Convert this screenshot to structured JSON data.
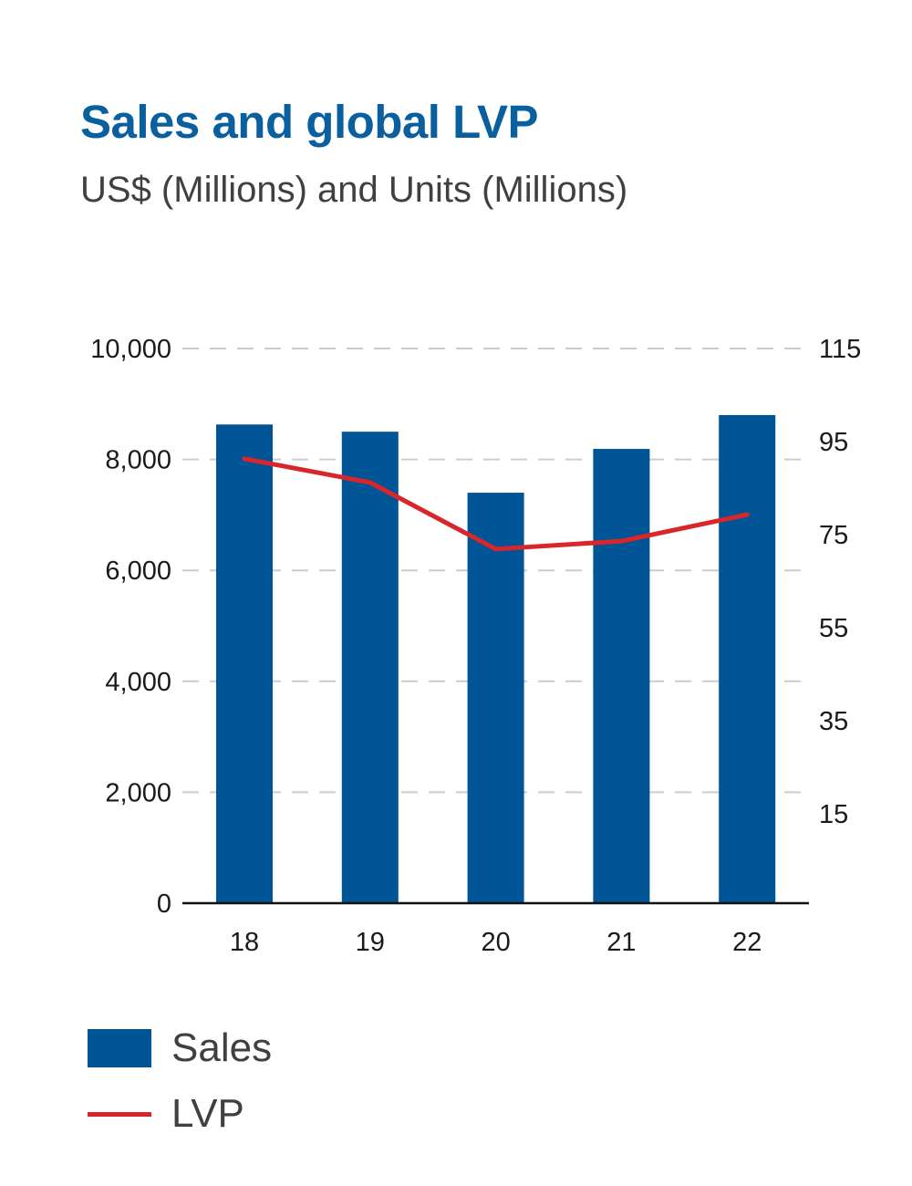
{
  "chart_data": {
    "type": "bar+line",
    "title": "Sales and global LVP",
    "subtitle": "US$ (Millions) and Units (Millions)",
    "categories": [
      "18",
      "19",
      "20",
      "21",
      "22"
    ],
    "series": [
      {
        "name": "Sales",
        "type": "bar",
        "axis": "left",
        "color": "#005596",
        "values": [
          8630,
          8500,
          7400,
          8190,
          8800
        ]
      },
      {
        "name": "LVP",
        "type": "line",
        "axis": "right",
        "color": "#d9262a",
        "values": [
          91.3,
          86.2,
          71.9,
          73.6,
          79.3
        ]
      }
    ],
    "left_axis": {
      "ticks": [
        "0",
        "2,000",
        "4,000",
        "6,000",
        "8,000",
        "10,000"
      ],
      "tick_values": [
        0,
        2000,
        4000,
        6000,
        8000,
        10000
      ],
      "range": [
        0,
        10000
      ]
    },
    "right_axis": {
      "ticks": [
        "15",
        "35",
        "55",
        "75",
        "95",
        "115"
      ],
      "tick_values": [
        15,
        35,
        55,
        75,
        95,
        115
      ]
    },
    "grid": "horizontal dashed",
    "legend_placement": "bottom-left"
  }
}
